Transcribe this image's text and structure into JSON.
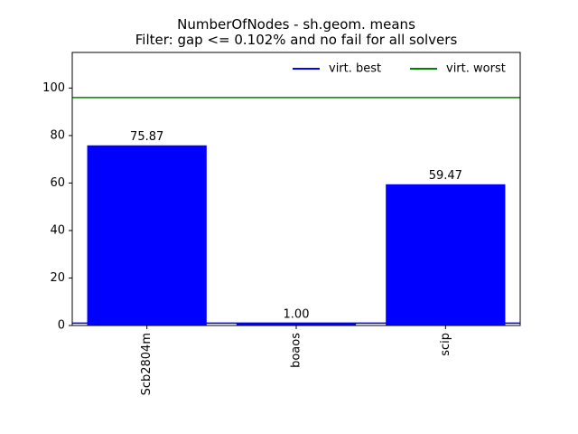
{
  "chart_data": {
    "type": "bar",
    "title_line1": "NumberOfNodes - sh.geom. means",
    "title_line2": "Filter: gap <= 0.102% and no fail for all solvers",
    "categories": [
      "Scb2804m",
      "boaos",
      "scip"
    ],
    "values": [
      75.87,
      1.0,
      59.47
    ],
    "value_labels": [
      "75.87",
      "1.00",
      "59.47"
    ],
    "bar_color": "#0000ff",
    "ylim": [
      0,
      115
    ],
    "yticks": [
      0,
      20,
      40,
      60,
      80,
      100
    ],
    "reference_lines": [
      {
        "name": "virt. best",
        "value": 1.0,
        "color": "#0000ff"
      },
      {
        "name": "virt. worst",
        "value": 96.0,
        "color": "#008000"
      }
    ],
    "legend_position": "top-right",
    "grid": false
  }
}
